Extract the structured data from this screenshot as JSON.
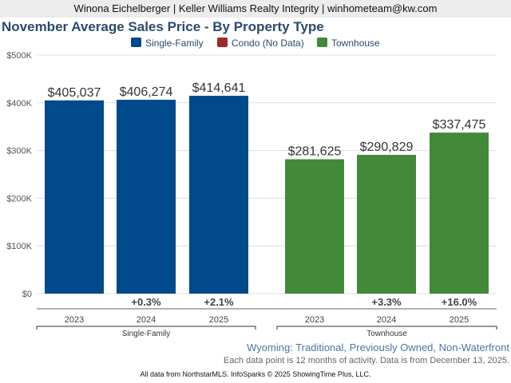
{
  "header": "Winona Eichelberger | Keller Williams Realty Integrity | winhometeam@kw.com",
  "subtitle": "Wyoming: Traditional, Previously Owned, Non-Waterfront",
  "note": "Each data point is 12 months of activity. Data is from December 13, 2025.",
  "footer": "All data from NorthstarMLS. InfoSparks © 2025 ShowingTime Plus, LLC.",
  "chart_data": {
    "type": "bar",
    "title": "November Average Sales Price - By Property Type",
    "ylim": [
      0,
      500000
    ],
    "yticks": [
      "$0",
      "$100K",
      "$200K",
      "$300K",
      "$400K",
      "$500K"
    ],
    "grid": true,
    "legend_placement": "top",
    "legend": [
      {
        "name": "Single-Family",
        "color": "#004a8c"
      },
      {
        "name": "Condo (No Data)",
        "color": "#a12a2a"
      },
      {
        "name": "Townhouse",
        "color": "#43893a"
      }
    ],
    "groups": [
      {
        "name": "Single-Family",
        "color": "#004a8c",
        "categories": [
          "2023",
          "2024",
          "2025"
        ],
        "values": [
          405037,
          406274,
          414641
        ],
        "labels": [
          "$405,037",
          "$406,274",
          "$414,641"
        ],
        "changes": [
          "",
          "+0.3%",
          "+2.1%"
        ]
      },
      {
        "name": "Townhouse",
        "color": "#43893a",
        "categories": [
          "2023",
          "2024",
          "2025"
        ],
        "values": [
          281625,
          290829,
          337475
        ],
        "labels": [
          "$281,625",
          "$290,829",
          "$337,475"
        ],
        "changes": [
          "",
          "+3.3%",
          "+16.0%"
        ]
      }
    ]
  }
}
